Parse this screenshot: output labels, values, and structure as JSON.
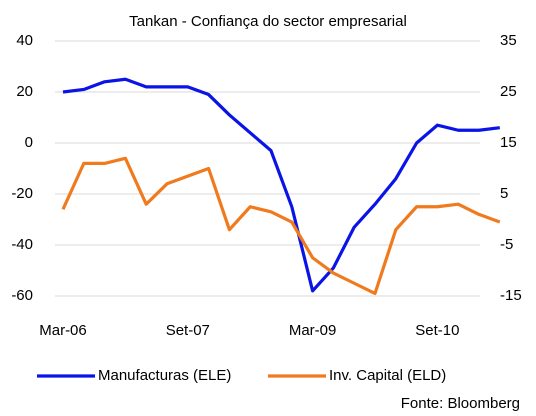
{
  "chart_data": {
    "type": "line",
    "title": "Tankan - Confiança do sector empresarial",
    "source": "Fonte: Bloomberg",
    "categories": [
      "Mar-06",
      null,
      null,
      null,
      null,
      null,
      "Set-07",
      null,
      null,
      null,
      null,
      null,
      "Mar-09",
      null,
      null,
      null,
      null,
      null,
      "Set-10",
      null,
      null,
      null
    ],
    "series": [
      {
        "name": "Manufacturas (ELE)",
        "color": "#0a14e6",
        "axis": "y",
        "values": [
          20,
          21,
          24,
          25,
          22,
          22,
          22,
          19,
          11,
          4,
          -3,
          -25,
          -58,
          -49,
          -33,
          -24,
          -14,
          0,
          7,
          5,
          5,
          6
        ]
      },
      {
        "name": "Inv. Capital (ELD)",
        "color": "#f07a1e",
        "axis": "y2",
        "values": [
          2,
          11,
          11,
          12,
          3,
          7,
          8.5,
          10,
          -2,
          2.5,
          1.5,
          -0.5,
          -7.5,
          -10.5,
          -12.5,
          -14.5,
          -2,
          2.5,
          2.5,
          3,
          1,
          -0.5
        ]
      }
    ],
    "ylim": [
      -60,
      40
    ],
    "yticks": [
      -60,
      -40,
      -20,
      0,
      20,
      40
    ],
    "y2lim": [
      -15,
      35
    ],
    "y2ticks": [
      -15,
      -5,
      5,
      15,
      25,
      35
    ],
    "grid": true,
    "legend": "bottom"
  }
}
